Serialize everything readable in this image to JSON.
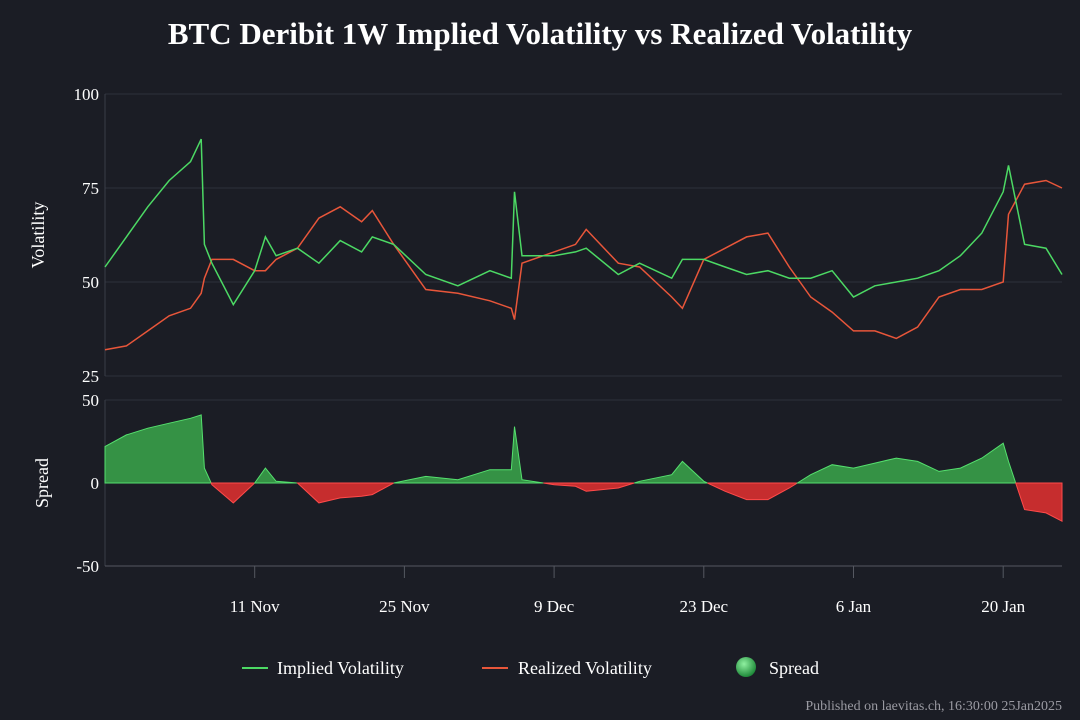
{
  "chart_data": {
    "type": "line",
    "title": "BTC Deribit 1W Implied Volatility vs Realized Volatility",
    "footer": "Published on laevitas.ch, 16:30:00 25Jan2025",
    "x_unit": "days since 2024-10-28",
    "x_range": [
      0,
      89.5
    ],
    "x_ticks": [
      {
        "label": "11 Nov",
        "value": 14
      },
      {
        "label": "25 Nov",
        "value": 28
      },
      {
        "label": "9 Dec",
        "value": 42
      },
      {
        "label": "23 Dec",
        "value": 56
      },
      {
        "label": "6 Jan",
        "value": 70
      },
      {
        "label": "20 Jan",
        "value": 84
      }
    ],
    "top_panel": {
      "ylabel": "Volatility",
      "ylim": [
        25,
        100
      ],
      "yticks": [
        25,
        50,
        75,
        100
      ]
    },
    "bottom_panel": {
      "ylabel": "Spread",
      "ylim": [
        -50,
        50
      ],
      "yticks": [
        -50,
        0,
        50
      ]
    },
    "x": [
      0,
      2,
      4,
      6,
      8,
      9,
      9.3,
      10,
      12,
      14,
      15,
      16,
      18,
      20,
      22,
      24,
      25,
      27,
      30,
      33,
      36,
      38,
      38.3,
      39,
      42,
      44,
      45,
      48,
      50,
      53,
      54,
      56,
      58,
      60,
      62,
      64,
      66,
      68,
      70,
      72,
      74,
      76,
      78,
      80,
      82,
      84,
      84.5,
      86,
      88,
      89.5
    ],
    "series": [
      {
        "name": "Implied Volatility",
        "color": "#4cd964",
        "values": [
          54,
          62,
          70,
          77,
          82,
          88,
          60,
          55,
          44,
          53,
          62,
          57,
          59,
          55,
          61,
          58,
          62,
          60,
          52,
          49,
          53,
          51,
          74,
          57,
          57,
          58,
          59,
          52,
          55,
          51,
          56,
          56,
          54,
          52,
          53,
          51,
          51,
          53,
          46,
          49,
          50,
          51,
          53,
          57,
          63,
          74,
          81,
          60,
          59,
          52
        ]
      },
      {
        "name": "Realized Volatility",
        "color": "#e8563a",
        "values": [
          32,
          33,
          37,
          41,
          43,
          47,
          51,
          56,
          56,
          53,
          53,
          56,
          59,
          67,
          70,
          66,
          69,
          60,
          48,
          47,
          45,
          43,
          40,
          55,
          58,
          60,
          64,
          55,
          54,
          46,
          43,
          56,
          59,
          62,
          63,
          54,
          46,
          42,
          37,
          37,
          35,
          38,
          46,
          48,
          48,
          50,
          68,
          76,
          77,
          75
        ]
      },
      {
        "name": "Spread",
        "pos_color": "#3fb950",
        "neg_color": "#d93030",
        "values": [
          22,
          29,
          33,
          36,
          39,
          41,
          9,
          -1,
          -12,
          0,
          9,
          1,
          0,
          -12,
          -9,
          -8,
          -7,
          0,
          4,
          2,
          8,
          8,
          34,
          2,
          -1,
          -2,
          -5,
          -3,
          1,
          5,
          13,
          1,
          -5,
          -10,
          -10,
          -3,
          5,
          11,
          9,
          12,
          15,
          13,
          7,
          9,
          15,
          24,
          13,
          -16,
          -18,
          -23
        ]
      }
    ],
    "legend_position": "bottom"
  }
}
